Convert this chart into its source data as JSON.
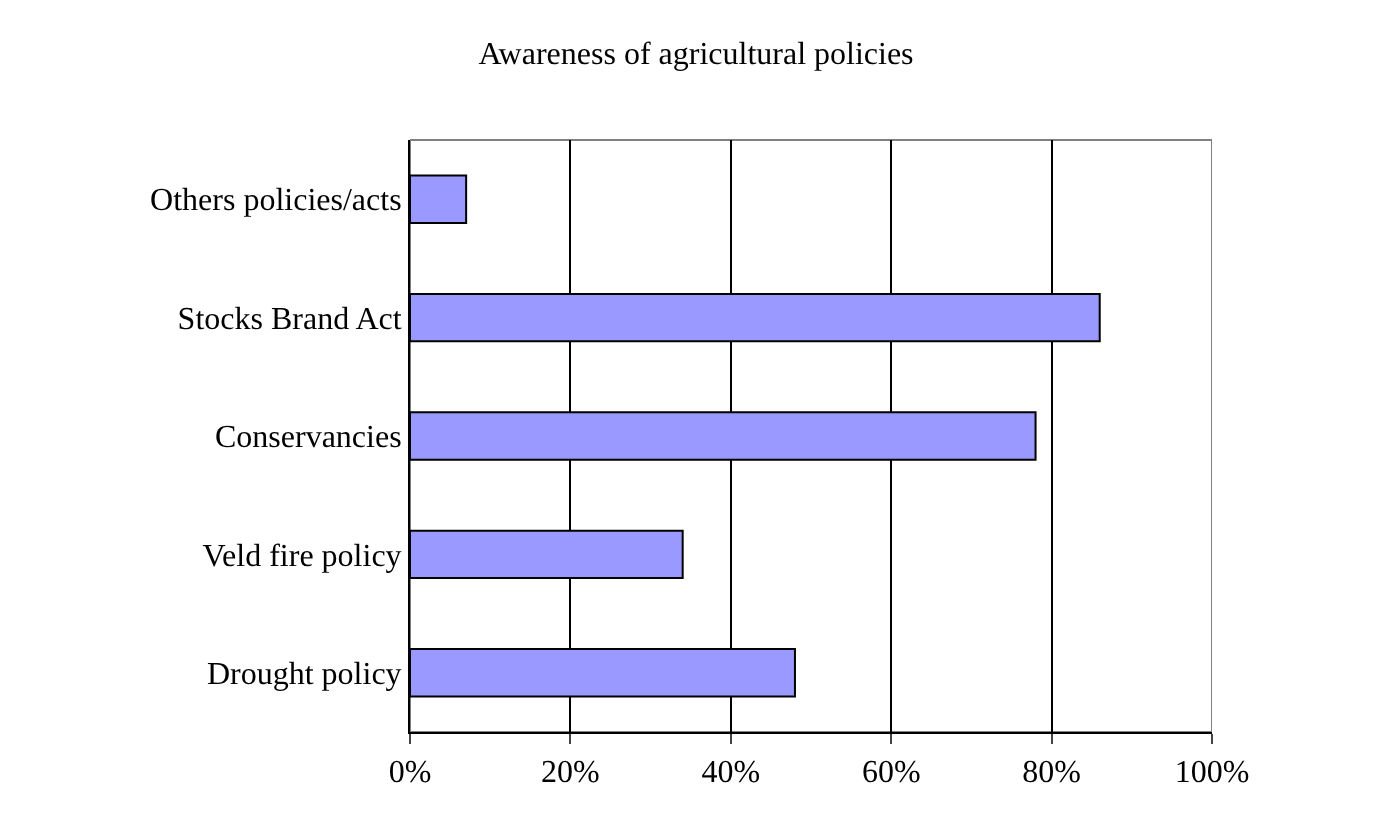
{
  "chart_data": {
    "type": "bar",
    "orientation": "horizontal",
    "title": "Awareness of agricultural policies",
    "categories": [
      "Others policies/acts",
      "Stocks Brand Act",
      "Conservancies",
      "Veld fire policy",
      "Drought policy"
    ],
    "values": [
      7,
      86,
      78,
      34,
      48
    ],
    "color": "#9999ff",
    "xlim": [
      0,
      100
    ],
    "xticks": [
      {
        "value": 0,
        "label": "0%"
      },
      {
        "value": 20,
        "label": "20%"
      },
      {
        "value": 40,
        "label": "40%"
      },
      {
        "value": 60,
        "label": "60%"
      },
      {
        "value": 80,
        "label": "80%"
      },
      {
        "value": 100,
        "label": "100%"
      }
    ],
    "grid": "x",
    "legend": false
  }
}
